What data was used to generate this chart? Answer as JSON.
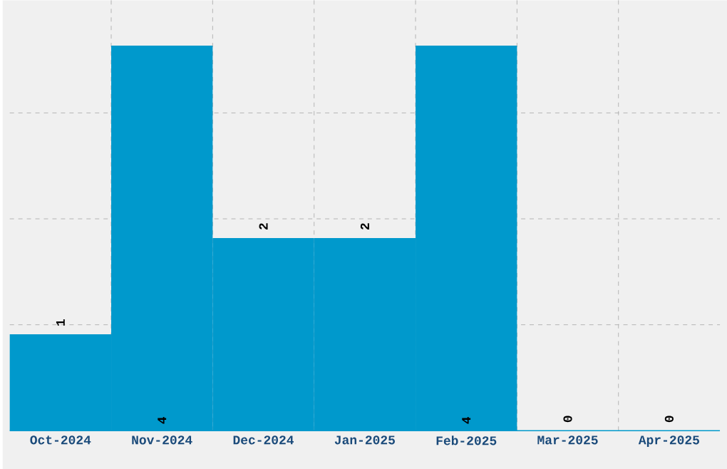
{
  "chart_data": {
    "type": "bar",
    "categories": [
      "Oct-2024",
      "Nov-2024",
      "Dec-2024",
      "Jan-2025",
      "Feb-2025",
      "Mar-2025",
      "Apr-2025"
    ],
    "values": [
      1,
      4,
      2,
      2,
      4,
      0,
      0
    ],
    "color": "#0099cc",
    "ylim": [
      0,
      4.47
    ],
    "yticks": [
      {
        "value": 1.1,
        "label": null
      },
      {
        "value": 2.2,
        "label": null
      },
      {
        "value": 3.3,
        "label": null
      }
    ],
    "grid": true,
    "data_labels": true,
    "tick_labels": "x"
  }
}
